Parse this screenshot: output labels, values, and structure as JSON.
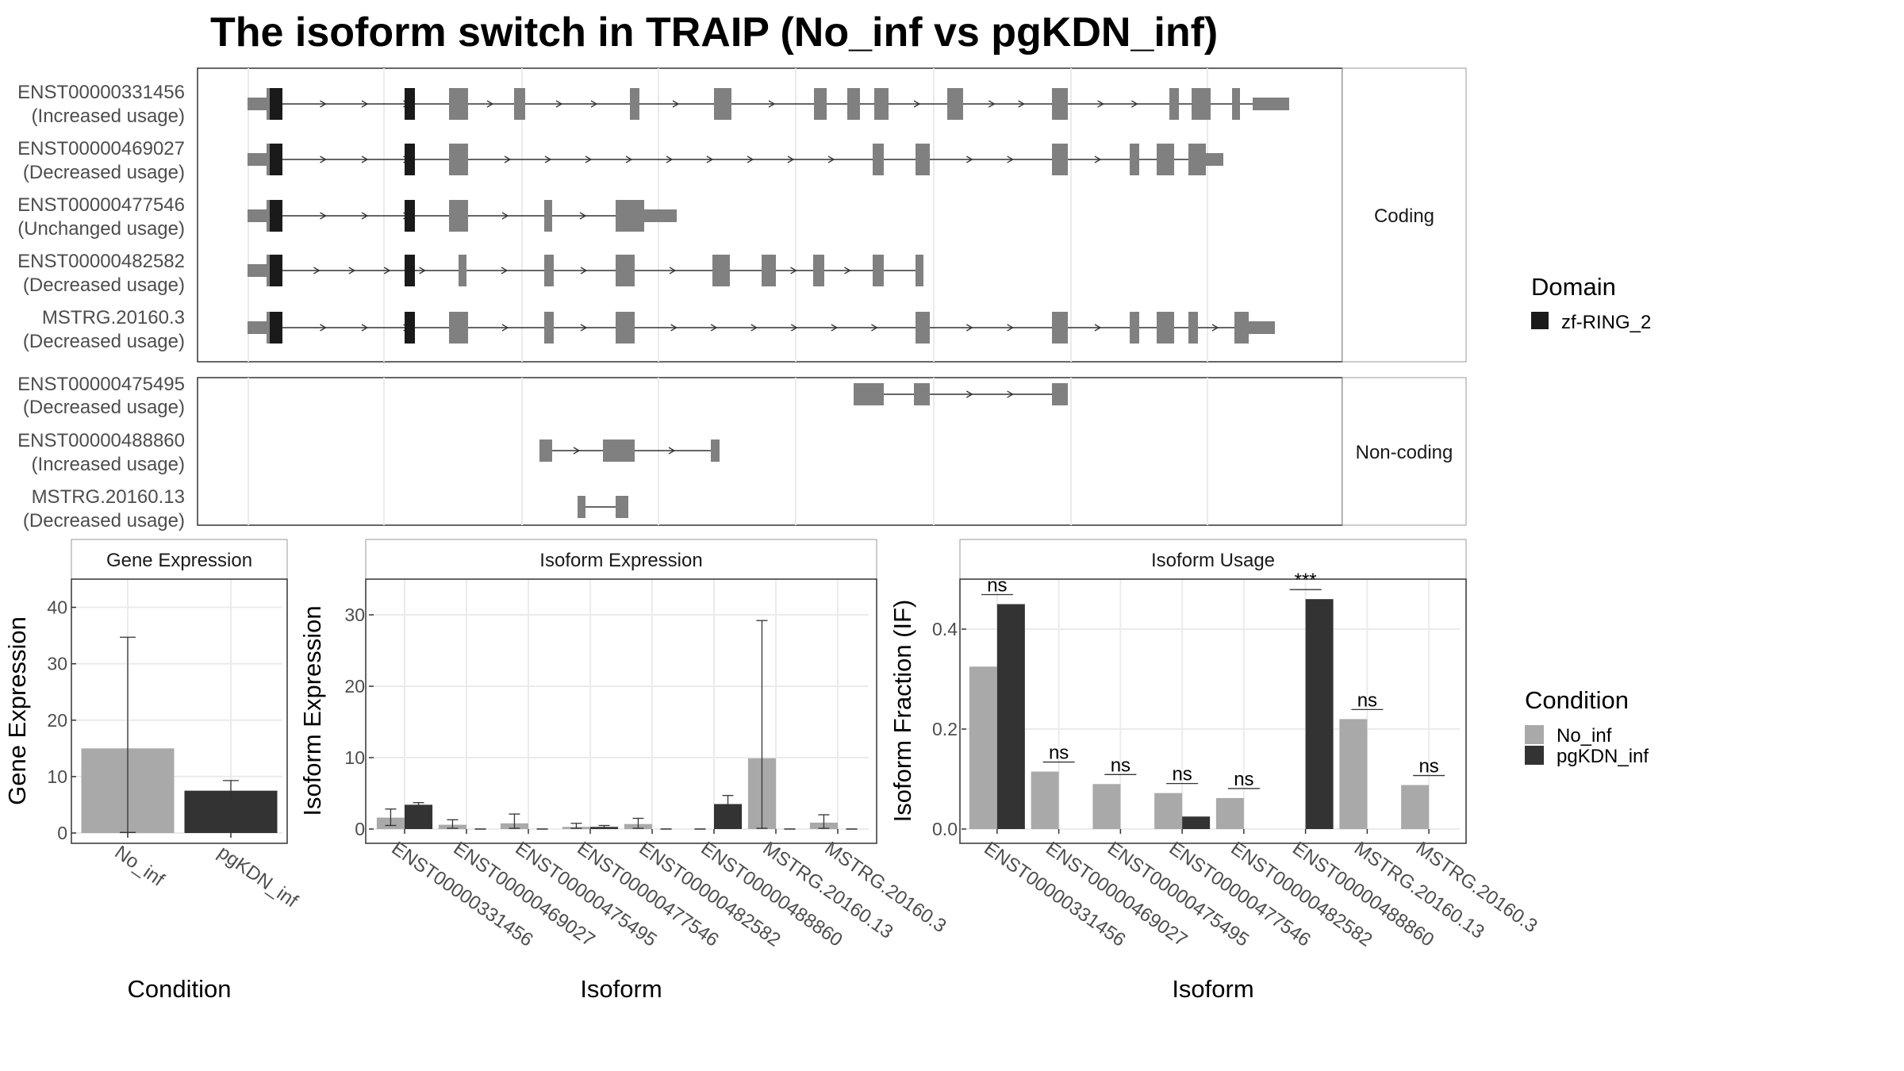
{
  "title": "The isoform switch in TRAIP (No_inf vs pgKDN_inf)",
  "colors": {
    "no_inf": "#a9a9a9",
    "pgkdn_inf": "#333333",
    "exon": "#808080",
    "domain": "#1a1a1a",
    "grid": "#ebebeb",
    "panel_border": "#333333",
    "strip_border": "#999999"
  },
  "structure": {
    "facets": [
      {
        "label": "Coding",
        "isoforms": [
          {
            "id": "ENST00000331456",
            "usage": "(Increased usage)"
          },
          {
            "id": "ENST00000469027",
            "usage": "(Decreased usage)"
          },
          {
            "id": "ENST00000477546",
            "usage": "(Unchanged usage)"
          },
          {
            "id": "ENST00000482582",
            "usage": "(Decreased usage)"
          },
          {
            "id": "MSTRG.20160.3",
            "usage": "(Decreased usage)"
          }
        ]
      },
      {
        "label": "Non-coding",
        "isoforms": [
          {
            "id": "ENST00000475495",
            "usage": "(Decreased usage)"
          },
          {
            "id": "ENST00000488860",
            "usage": "(Increased usage)"
          },
          {
            "id": "MSTRG.20160.13",
            "usage": "(Decreased usage)"
          }
        ]
      }
    ],
    "legend_title": "Domain",
    "legend_item": "zf-RING_2"
  },
  "chart_data": [
    {
      "type": "bar",
      "panel": "Gene Expression",
      "xlabel": "Condition",
      "ylabel": "Gene Expression",
      "ylim": [
        0,
        45
      ],
      "yticks": [
        0,
        10,
        20,
        30,
        40
      ],
      "categories": [
        "No_inf",
        "pgKDN_inf"
      ],
      "values": [
        15.0,
        7.5
      ],
      "error_low": [
        0.1,
        5.8
      ],
      "error_high": [
        34.7,
        9.3
      ]
    },
    {
      "type": "bar",
      "panel": "Isoform Expression",
      "xlabel": "Isoform",
      "ylabel": "Isoform Expression",
      "ylim": [
        0,
        35
      ],
      "yticks": [
        0,
        10,
        20,
        30
      ],
      "categories": [
        "ENST00000331456",
        "ENST00000469027",
        "ENST00000475495",
        "ENST00000477546",
        "ENST00000482582",
        "ENST00000488860",
        "MSTRG.20160.13",
        "MSTRG.20160.3"
      ],
      "series": [
        {
          "name": "No_inf",
          "values": [
            1.6,
            0.6,
            0.8,
            0.3,
            0.7,
            0.0,
            9.9,
            0.9
          ],
          "error_low": [
            0.5,
            0.1,
            0.1,
            0.1,
            0.1,
            0.0,
            0.1,
            0.1
          ],
          "error_high": [
            2.8,
            1.3,
            2.1,
            0.8,
            1.5,
            0.0,
            29.2,
            2.0
          ]
        },
        {
          "name": "pgKDN_inf",
          "values": [
            3.4,
            0.0,
            0.0,
            0.3,
            0.0,
            3.5,
            0.0,
            0.0
          ],
          "error_low": [
            3.1,
            0.0,
            0.0,
            0.1,
            0.0,
            2.3,
            0.0,
            0.0
          ],
          "error_high": [
            3.7,
            0.0,
            0.0,
            0.5,
            0.0,
            4.7,
            0.0,
            0.0
          ]
        }
      ]
    },
    {
      "type": "bar",
      "panel": "Isoform Usage",
      "xlabel": "Isoform",
      "ylabel": "Isoform Fraction (IF)",
      "ylim": [
        0,
        0.5
      ],
      "yticks": [
        0.0,
        0.2,
        0.4
      ],
      "categories": [
        "ENST00000331456",
        "ENST00000469027",
        "ENST00000475495",
        "ENST00000477546",
        "ENST00000482582",
        "ENST00000488860",
        "MSTRG.20160.13",
        "MSTRG.20160.3"
      ],
      "series": [
        {
          "name": "No_inf",
          "values": [
            0.325,
            0.115,
            0.09,
            0.072,
            0.062,
            0.0,
            0.22,
            0.088
          ]
        },
        {
          "name": "pgKDN_inf",
          "values": [
            0.45,
            0.0,
            0.0,
            0.025,
            0.0,
            0.46,
            0.0,
            0.0
          ]
        }
      ],
      "significance": [
        "ns",
        "ns",
        "ns",
        "ns",
        "ns",
        "***",
        "ns",
        "ns"
      ]
    }
  ],
  "legend": {
    "title": "Condition",
    "items": [
      "No_inf",
      "pgKDN_inf"
    ]
  }
}
